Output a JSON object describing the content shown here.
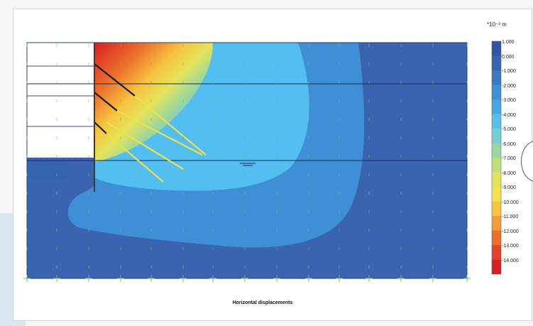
{
  "figure": {
    "caption": "Horizontal displacements",
    "scale_unit": "*10⁻³ m",
    "scale_entries": [
      {
        "label": "1.000",
        "color": "#2f55a3"
      },
      {
        "label": "0.000",
        "color": "#3563ae"
      },
      {
        "label": "-1.000",
        "color": "#3a78c2"
      },
      {
        "label": "-2.000",
        "color": "#3f8fd6"
      },
      {
        "label": "-3.000",
        "color": "#44a6e3"
      },
      {
        "label": "-4.000",
        "color": "#57c0e8"
      },
      {
        "label": "-5.000",
        "color": "#73cfd8"
      },
      {
        "label": "-6.000",
        "color": "#98d6a2"
      },
      {
        "label": "-7.000",
        "color": "#bedd7b"
      },
      {
        "label": "-8.000",
        "color": "#e2e45a"
      },
      {
        "label": "-9.000",
        "color": "#f6e04a"
      },
      {
        "label": "-10.000",
        "color": "#f7c23e"
      },
      {
        "label": "-11.000",
        "color": "#f39c35"
      },
      {
        "label": "-12.000",
        "color": "#ec6f2c"
      },
      {
        "label": "-13.000",
        "color": "#e34427"
      },
      {
        "label": "-14.000",
        "color": "#d81f22"
      }
    ],
    "colors": {
      "soil_base": "#3a63b0",
      "bulb_mid": "#3f8fd6",
      "bulb_light": "#52bff0",
      "anchor_rod": "#f1df49",
      "anchor_head": "#1a1a1a",
      "wall": "#3b3b3b",
      "mesh_marker": "#6fbf5a"
    }
  }
}
